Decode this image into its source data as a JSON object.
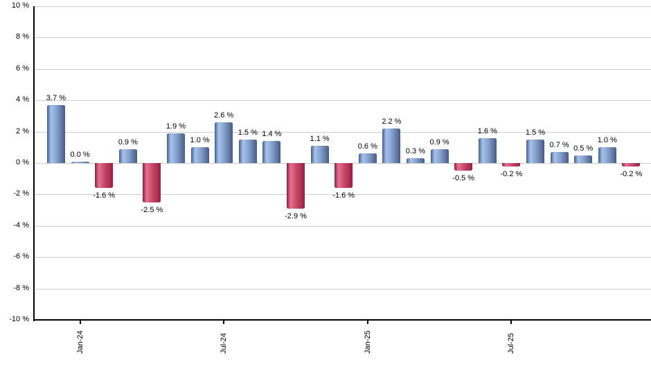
{
  "chart_data": {
    "type": "bar",
    "title": "",
    "xlabel": "",
    "ylabel": "",
    "unit": "%",
    "ylim": [
      -10,
      10
    ],
    "ytick_step": 2,
    "grid": "horizontal",
    "legend_position": "none",
    "ytick_labels": [
      "10 %",
      "8 %",
      "6 %",
      "4 %",
      "2 %",
      "0 %",
      "-2 %",
      "-4 %",
      "-6 %",
      "-8 %",
      "-10 %"
    ],
    "ytick_values": [
      10,
      8,
      6,
      4,
      2,
      0,
      -2,
      -4,
      -6,
      -8,
      -10
    ],
    "values": [
      3.7,
      0.0,
      -1.6,
      0.9,
      -2.5,
      1.9,
      1.0,
      2.6,
      1.5,
      1.4,
      -2.9,
      1.1,
      -1.6,
      0.6,
      2.2,
      0.3,
      0.9,
      -0.5,
      1.6,
      -0.2,
      1.5,
      0.7,
      0.5,
      1.0,
      -0.2
    ],
    "bar_labels": [
      "3.7 %",
      "0.0 %",
      "-1.6 %",
      "0.9 %",
      "-2.5 %",
      "1.9 %",
      "1.0 %",
      "2.6 %",
      "1.5 %",
      "1.4 %",
      "-2.9 %",
      "1.1 %",
      "-1.6 %",
      "0.6 %",
      "2.2 %",
      "0.3 %",
      "0.9 %",
      "-0.5 %",
      "1.6 %",
      "-0.2 %",
      "1.5 %",
      "0.7 %",
      "0.5 %",
      "1.0 %",
      "-0.2 %"
    ],
    "x_tick_labels": [
      {
        "index": 1,
        "label": "Jan-24"
      },
      {
        "index": 7,
        "label": "Jul-24"
      },
      {
        "index": 13,
        "label": "Jan-25"
      },
      {
        "index": 19,
        "label": "Jul-25"
      }
    ],
    "colors": {
      "positive_gradient": [
        "#3f5e8e",
        "#a7c2ea",
        "#86a3d0",
        "#5a6d96",
        "#475a7f"
      ],
      "negative_gradient": [
        "#8e1c3e",
        "#e27290",
        "#c94a6b",
        "#a42c4e",
        "#8f1f40"
      ],
      "gridline": "#cccccc",
      "axis": "#000000",
      "label_text": "#000000",
      "background": "#ffffff"
    }
  }
}
